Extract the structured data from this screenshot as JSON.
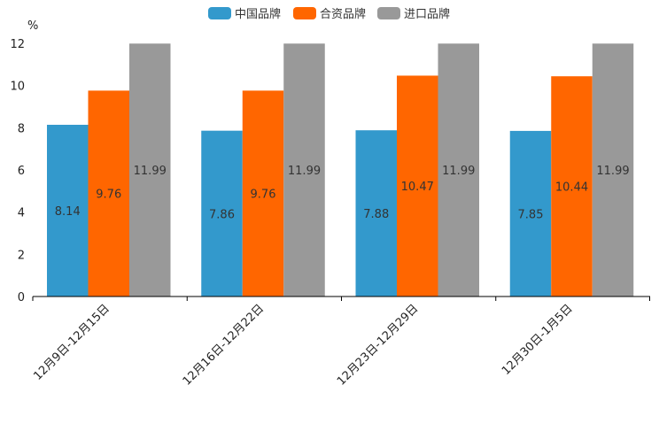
{
  "chart_data": {
    "type": "bar",
    "title": "",
    "ylabel": "%",
    "xlabel": "",
    "ylim": [
      0,
      12
    ],
    "yticks": [
      0,
      2,
      4,
      6,
      8,
      10,
      12
    ],
    "categories": [
      "12月9日-12月15日",
      "12月16日-12月22日",
      "12月23日-12月29日",
      "12月30日-1月5日"
    ],
    "series": [
      {
        "name": "中国品牌",
        "color": "#3399cc",
        "values": [
          8.14,
          7.86,
          7.88,
          7.85
        ]
      },
      {
        "name": "合资品牌",
        "color": "#ff6600",
        "values": [
          9.76,
          9.76,
          10.47,
          10.44
        ]
      },
      {
        "name": "进口品牌",
        "color": "#999999",
        "values": [
          11.99,
          11.99,
          11.99,
          11.99
        ]
      }
    ],
    "legend_position": "top-center",
    "grid": false
  }
}
